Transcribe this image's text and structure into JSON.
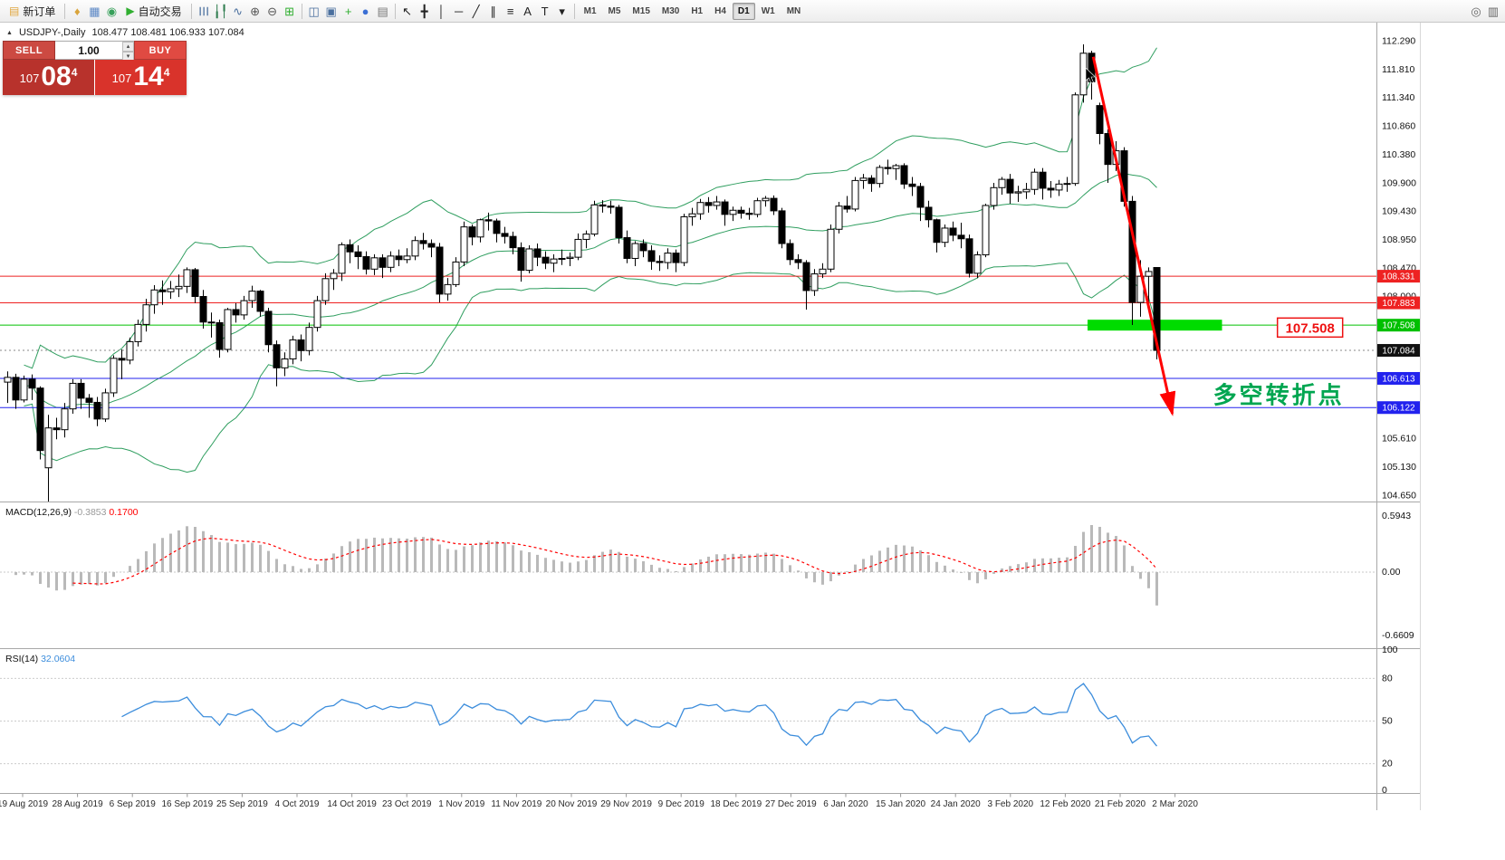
{
  "toolbar": {
    "items": [
      {
        "kind": "btn",
        "name": "new-order-button",
        "glyph": "▤",
        "glyph_color": "#e0a53c",
        "label": "新订单"
      },
      {
        "kind": "sep"
      },
      {
        "kind": "icon",
        "name": "profile-icon",
        "glyph": "♦",
        "color": "#d9a43b"
      },
      {
        "kind": "icon",
        "name": "charts-grid-icon",
        "glyph": "▦",
        "color": "#5b87c5"
      },
      {
        "kind": "icon",
        "name": "refresh-icon",
        "glyph": "◉",
        "color": "#37a05a"
      },
      {
        "kind": "btn",
        "name": "autotrading-button",
        "glyph": "▶",
        "glyph_color": "#2fae2f",
        "label": "自动交易"
      },
      {
        "kind": "sep"
      },
      {
        "kind": "icon",
        "name": "bar-chart-type-icon",
        "glyph": "☰",
        "color": "#4a6f9e",
        "rot": true
      },
      {
        "kind": "icon",
        "name": "candle-chart-type-icon",
        "glyph": "╽╿",
        "color": "#2f7d4f"
      },
      {
        "kind": "icon",
        "name": "line-chart-type-icon",
        "glyph": "∿",
        "color": "#4a6f9e"
      },
      {
        "kind": "icon",
        "name": "zoom-in-icon",
        "glyph": "⊕",
        "color": "#555555"
      },
      {
        "kind": "icon",
        "name": "zoom-out-icon",
        "glyph": "⊖",
        "color": "#555555"
      },
      {
        "kind": "icon",
        "name": "tile-windows-icon",
        "glyph": "⊞",
        "color": "#2fae2f"
      },
      {
        "kind": "sep"
      },
      {
        "kind": "icon",
        "name": "arrange-windows-icon",
        "glyph": "◫",
        "color": "#4a6f9e"
      },
      {
        "kind": "icon",
        "name": "cascade-windows-icon",
        "glyph": "▣",
        "color": "#4a6f9e"
      },
      {
        "kind": "icon",
        "name": "new-chart-icon",
        "glyph": "+",
        "color": "#2fae2f"
      },
      {
        "kind": "icon",
        "name": "auto-scroll-icon",
        "glyph": "●",
        "color": "#3b6fd4"
      },
      {
        "kind": "icon",
        "name": "chart-shift-icon",
        "glyph": "▤",
        "color": "#777777"
      },
      {
        "kind": "sep"
      },
      {
        "kind": "icon",
        "name": "cursor-icon",
        "glyph": "↖",
        "color": "#222222"
      },
      {
        "kind": "icon",
        "name": "crosshair-icon",
        "glyph": "╋",
        "color": "#222222"
      },
      {
        "kind": "icon",
        "name": "vertical-line-icon",
        "glyph": "│",
        "color": "#222222"
      },
      {
        "kind": "icon",
        "name": "horizontal-line-icon",
        "glyph": "─",
        "color": "#222222"
      },
      {
        "kind": "icon",
        "name": "trendline-icon",
        "glyph": "╱",
        "color": "#222222"
      },
      {
        "kind": "icon",
        "name": "channel-icon",
        "glyph": "∥",
        "color": "#222222"
      },
      {
        "kind": "icon",
        "name": "fibonacci-icon",
        "glyph": "≡",
        "color": "#222222"
      },
      {
        "kind": "icon",
        "name": "text-tool-icon",
        "glyph": "A",
        "color": "#222222"
      },
      {
        "kind": "icon",
        "name": "label-tool-icon",
        "glyph": "T",
        "color": "#222222"
      },
      {
        "kind": "icon",
        "name": "shapes-dropdown-icon",
        "glyph": "▾",
        "color": "#222222"
      },
      {
        "kind": "sep"
      }
    ],
    "timeframes": [
      "M1",
      "M5",
      "M15",
      "M30",
      "H1",
      "H4",
      "D1",
      "W1",
      "MN"
    ],
    "active_timeframe": "D1",
    "right_items": [
      {
        "kind": "icon",
        "name": "search-icon",
        "glyph": "◎",
        "color": "#666666"
      },
      {
        "kind": "icon",
        "name": "window-list-icon",
        "glyph": "▥",
        "color": "#666666"
      }
    ]
  },
  "chart": {
    "marker_glyph": "▲",
    "title": "USDJPY-,Daily",
    "quote_line": "108.477 108.481 106.933 107.084"
  },
  "order_panel": {
    "volume": "1.00",
    "spin_up_glyph": "▴",
    "spin_down_glyph": "▾",
    "sell": {
      "label": "SELL",
      "price_main": "107",
      "price_big": "08",
      "price_sup": "4"
    },
    "buy": {
      "label": "BUY",
      "price_main": "107",
      "price_big": "14",
      "price_sup": "4"
    }
  },
  "chart_data": {
    "type": "candlestick",
    "symbol": "USDJPY-",
    "timeframe": "Daily",
    "current_bar": {
      "open": 108.477,
      "high": 108.481,
      "low": 106.933,
      "close": 107.084
    },
    "ylim": [
      104.53,
      112.42
    ],
    "price_ticks": [
      112.29,
      111.81,
      111.34,
      110.86,
      110.38,
      109.9,
      109.43,
      108.95,
      108.47,
      108.0,
      105.61,
      105.13,
      104.65
    ],
    "x_labels": [
      "19 Aug 2019",
      "28 Aug 2019",
      "6 Sep 2019",
      "16 Sep 2019",
      "25 Sep 2019",
      "4 Oct 2019",
      "14 Oct 2019",
      "23 Oct 2019",
      "1 Nov 2019",
      "11 Nov 2019",
      "20 Nov 2019",
      "29 Nov 2019",
      "9 Dec 2019",
      "18 Dec 2019",
      "27 Dec 2019",
      "6 Jan 2020",
      "15 Jan 2020",
      "24 Jan 2020",
      "3 Feb 2020",
      "12 Feb 2020",
      "21 Feb 2020",
      "2 Mar 2020"
    ],
    "candles": [
      [
        106.55,
        106.73,
        106.2,
        106.63
      ],
      [
        106.63,
        106.69,
        106.1,
        106.25
      ],
      [
        106.25,
        106.66,
        106.21,
        106.6
      ],
      [
        106.6,
        106.68,
        106.25,
        106.45
      ],
      [
        106.45,
        106.48,
        105.25,
        105.4
      ],
      [
        105.11,
        106.0,
        104.46,
        105.78
      ],
      [
        105.78,
        105.95,
        105.59,
        105.75
      ],
      [
        105.75,
        106.2,
        105.62,
        106.1
      ],
      [
        106.1,
        106.6,
        106.02,
        106.53
      ],
      [
        106.53,
        106.6,
        106.1,
        106.28
      ],
      [
        106.28,
        106.35,
        105.95,
        106.21
      ],
      [
        106.21,
        106.3,
        105.81,
        105.93
      ],
      [
        105.93,
        106.44,
        105.88,
        106.37
      ],
      [
        106.37,
        107.0,
        106.3,
        106.95
      ],
      [
        106.95,
        107.1,
        106.6,
        106.92
      ],
      [
        106.92,
        107.3,
        106.85,
        107.23
      ],
      [
        107.23,
        107.6,
        107.15,
        107.52
      ],
      [
        107.52,
        107.95,
        107.4,
        107.85
      ],
      [
        107.85,
        108.18,
        107.7,
        108.1
      ],
      [
        108.1,
        108.26,
        107.85,
        108.07
      ],
      [
        108.07,
        108.25,
        107.95,
        108.12
      ],
      [
        108.12,
        108.36,
        107.98,
        108.16
      ],
      [
        108.16,
        108.48,
        108.05,
        108.44
      ],
      [
        108.44,
        108.47,
        107.88,
        107.99
      ],
      [
        107.99,
        108.1,
        107.45,
        107.56
      ],
      [
        107.56,
        107.72,
        107.3,
        107.55
      ],
      [
        107.55,
        107.6,
        106.96,
        107.1
      ],
      [
        107.1,
        107.8,
        107.05,
        107.77
      ],
      [
        107.77,
        107.88,
        107.55,
        107.68
      ],
      [
        107.68,
        108.0,
        107.6,
        107.92
      ],
      [
        107.92,
        108.17,
        107.8,
        108.08
      ],
      [
        108.08,
        108.1,
        107.65,
        107.74
      ],
      [
        107.74,
        107.8,
        107.05,
        107.18
      ],
      [
        107.18,
        107.25,
        106.48,
        106.79
      ],
      [
        106.79,
        107.05,
        106.65,
        106.94
      ],
      [
        106.94,
        107.33,
        106.85,
        107.26
      ],
      [
        107.26,
        107.35,
        106.9,
        107.08
      ],
      [
        107.08,
        107.55,
        107.0,
        107.47
      ],
      [
        107.47,
        108.0,
        107.4,
        107.92
      ],
      [
        107.92,
        108.38,
        107.85,
        108.29
      ],
      [
        108.29,
        108.45,
        108.1,
        108.38
      ],
      [
        108.38,
        108.9,
        108.25,
        108.86
      ],
      [
        108.86,
        108.95,
        108.55,
        108.74
      ],
      [
        108.74,
        108.85,
        108.45,
        108.66
      ],
      [
        108.66,
        108.75,
        108.36,
        108.45
      ],
      [
        108.45,
        108.7,
        108.35,
        108.64
      ],
      [
        108.64,
        108.7,
        108.3,
        108.48
      ],
      [
        108.48,
        108.75,
        108.4,
        108.67
      ],
      [
        108.67,
        108.78,
        108.5,
        108.61
      ],
      [
        108.61,
        108.8,
        108.55,
        108.67
      ],
      [
        108.67,
        109.0,
        108.6,
        108.93
      ],
      [
        108.93,
        109.06,
        108.78,
        108.88
      ],
      [
        108.88,
        108.95,
        108.65,
        108.82
      ],
      [
        108.82,
        108.89,
        107.89,
        108.03
      ],
      [
        108.03,
        108.3,
        107.92,
        108.19
      ],
      [
        108.19,
        108.65,
        108.15,
        108.57
      ],
      [
        108.57,
        109.25,
        108.5,
        109.16
      ],
      [
        109.16,
        109.2,
        108.85,
        108.99
      ],
      [
        108.99,
        109.3,
        108.9,
        109.28
      ],
      [
        109.28,
        109.4,
        109.1,
        109.26
      ],
      [
        109.26,
        109.3,
        108.9,
        109.05
      ],
      [
        109.05,
        109.16,
        108.88,
        109.0
      ],
      [
        109.0,
        109.08,
        108.7,
        108.81
      ],
      [
        108.81,
        108.9,
        108.24,
        108.43
      ],
      [
        108.43,
        108.85,
        108.38,
        108.79
      ],
      [
        108.79,
        108.88,
        108.5,
        108.65
      ],
      [
        108.65,
        108.75,
        108.45,
        108.55
      ],
      [
        108.55,
        108.7,
        108.4,
        108.62
      ],
      [
        108.62,
        108.78,
        108.52,
        108.63
      ],
      [
        108.63,
        108.73,
        108.5,
        108.65
      ],
      [
        108.65,
        109.05,
        108.6,
        108.95
      ],
      [
        108.95,
        109.1,
        108.8,
        109.04
      ],
      [
        109.04,
        109.6,
        109.0,
        109.53
      ],
      [
        109.53,
        109.61,
        109.4,
        109.51
      ],
      [
        109.51,
        109.6,
        109.38,
        109.49
      ],
      [
        109.49,
        109.53,
        108.88,
        108.98
      ],
      [
        108.98,
        109.1,
        108.55,
        108.63
      ],
      [
        108.63,
        108.92,
        108.5,
        108.88
      ],
      [
        108.88,
        108.95,
        108.65,
        108.76
      ],
      [
        108.76,
        108.85,
        108.44,
        108.58
      ],
      [
        108.58,
        108.68,
        108.42,
        108.56
      ],
      [
        108.56,
        108.8,
        108.45,
        108.72
      ],
      [
        108.72,
        108.78,
        108.4,
        108.56
      ],
      [
        108.56,
        109.38,
        108.5,
        109.33
      ],
      [
        109.33,
        109.48,
        109.18,
        109.38
      ],
      [
        109.38,
        109.63,
        109.28,
        109.57
      ],
      [
        109.57,
        109.66,
        109.4,
        109.52
      ],
      [
        109.52,
        109.68,
        109.45,
        109.58
      ],
      [
        109.58,
        109.62,
        109.18,
        109.37
      ],
      [
        109.37,
        109.5,
        109.26,
        109.44
      ],
      [
        109.44,
        109.5,
        109.3,
        109.39
      ],
      [
        109.39,
        109.48,
        109.28,
        109.37
      ],
      [
        109.37,
        109.65,
        109.32,
        109.6
      ],
      [
        109.6,
        109.68,
        109.5,
        109.64
      ],
      [
        109.64,
        109.69,
        109.36,
        109.43
      ],
      [
        109.43,
        109.48,
        108.8,
        108.88
      ],
      [
        108.88,
        108.95,
        108.52,
        108.61
      ],
      [
        108.61,
        108.7,
        108.45,
        108.56
      ],
      [
        108.56,
        108.6,
        107.77,
        108.09
      ],
      [
        108.09,
        108.45,
        108.0,
        108.37
      ],
      [
        108.37,
        108.55,
        108.3,
        108.45
      ],
      [
        108.45,
        109.2,
        108.4,
        109.12
      ],
      [
        109.12,
        109.58,
        109.05,
        109.51
      ],
      [
        109.51,
        109.68,
        109.4,
        109.46
      ],
      [
        109.46,
        110.0,
        109.42,
        109.94
      ],
      [
        109.94,
        110.05,
        109.8,
        109.98
      ],
      [
        109.98,
        110.03,
        109.75,
        109.89
      ],
      [
        109.89,
        110.2,
        109.82,
        110.16
      ],
      [
        110.16,
        110.29,
        110.04,
        110.14
      ],
      [
        110.14,
        110.22,
        109.95,
        110.19
      ],
      [
        110.19,
        110.23,
        109.8,
        109.88
      ],
      [
        109.88,
        110.0,
        109.68,
        109.84
      ],
      [
        109.84,
        109.9,
        109.26,
        109.49
      ],
      [
        109.49,
        109.6,
        109.15,
        109.28
      ],
      [
        109.28,
        109.3,
        108.73,
        108.9
      ],
      [
        108.9,
        109.2,
        108.82,
        109.14
      ],
      [
        109.14,
        109.25,
        108.92,
        109.02
      ],
      [
        109.02,
        109.23,
        108.8,
        108.96
      ],
      [
        108.96,
        109.03,
        108.31,
        108.38
      ],
      [
        108.38,
        108.75,
        108.3,
        108.69
      ],
      [
        108.69,
        109.55,
        108.65,
        109.52
      ],
      [
        109.52,
        109.9,
        109.45,
        109.82
      ],
      [
        109.82,
        110.0,
        109.7,
        109.96
      ],
      [
        109.96,
        110.05,
        109.55,
        109.73
      ],
      [
        109.73,
        109.85,
        109.58,
        109.75
      ],
      [
        109.75,
        109.9,
        109.63,
        109.79
      ],
      [
        109.79,
        110.14,
        109.7,
        110.08
      ],
      [
        110.08,
        110.15,
        109.62,
        109.81
      ],
      [
        109.81,
        109.93,
        109.65,
        109.78
      ],
      [
        109.78,
        109.95,
        109.68,
        109.88
      ],
      [
        109.88,
        110.0,
        109.75,
        109.89
      ],
      [
        109.89,
        111.42,
        109.85,
        111.38
      ],
      [
        111.38,
        112.23,
        111.25,
        112.08
      ],
      [
        112.08,
        112.12,
        111.3,
        111.6
      ],
      [
        111.2,
        111.25,
        110.55,
        110.73
      ],
      [
        110.73,
        110.8,
        109.9,
        110.21
      ],
      [
        110.21,
        110.6,
        110.1,
        110.44
      ],
      [
        110.44,
        110.5,
        109.5,
        109.59
      ],
      [
        109.59,
        109.68,
        107.51,
        107.89
      ],
      [
        107.89,
        108.6,
        107.65,
        108.33
      ],
      [
        108.33,
        108.48,
        107.85,
        108.41
      ],
      [
        108.477,
        108.481,
        106.933,
        107.084
      ]
    ],
    "bollinger": {
      "period": 20,
      "deviation": 2,
      "color": "#2f9e5f"
    },
    "hlines": [
      {
        "price": 108.331,
        "color": "#ee2222",
        "label": "108.331"
      },
      {
        "price": 107.883,
        "color": "#ee2222",
        "label": "107.883"
      },
      {
        "price": 107.508,
        "color": "#00c000",
        "label": "107.508"
      },
      {
        "price": 106.613,
        "color": "#2222ee",
        "label": "106.613"
      },
      {
        "price": 106.122,
        "color": "#2222ee",
        "label": "106.122"
      }
    ],
    "current_price": {
      "value": 107.084,
      "label": "107.084",
      "badge_bg": "#111111"
    },
    "indicators": {
      "macd": {
        "label": "MACD(12,26,9)",
        "main_value": "-0.3853",
        "signal_value": "0.1700",
        "axis": [
          "0.5943",
          "0.00",
          "-0.6609"
        ],
        "max": 0.5943,
        "min": -0.6609,
        "hist_color": "#b9b9b9",
        "signal_color": "#ff0000"
      },
      "rsi": {
        "label": "RSI(14)",
        "value": "32.0604",
        "axis": [
          100,
          80,
          50,
          20,
          0
        ],
        "levels": [
          80,
          50,
          20
        ],
        "line_color": "#3c8ddc"
      }
    },
    "annotations": {
      "zone": {
        "bar_start": 132.5,
        "bar_end": 149,
        "price": 107.508,
        "color": "#00dc00"
      },
      "price_tag": {
        "text": "107.508",
        "bar": 155.8,
        "price": 107.46,
        "color": "#ee1111"
      },
      "note": {
        "text": "多空转折点",
        "bar": 147.9,
        "price": 106.33,
        "color": "#00a651"
      },
      "arrow": {
        "bar1": 133.2,
        "price1": 112.02,
        "bar2": 142.9,
        "price2": 106.02,
        "color": "#ff0000"
      }
    }
  }
}
